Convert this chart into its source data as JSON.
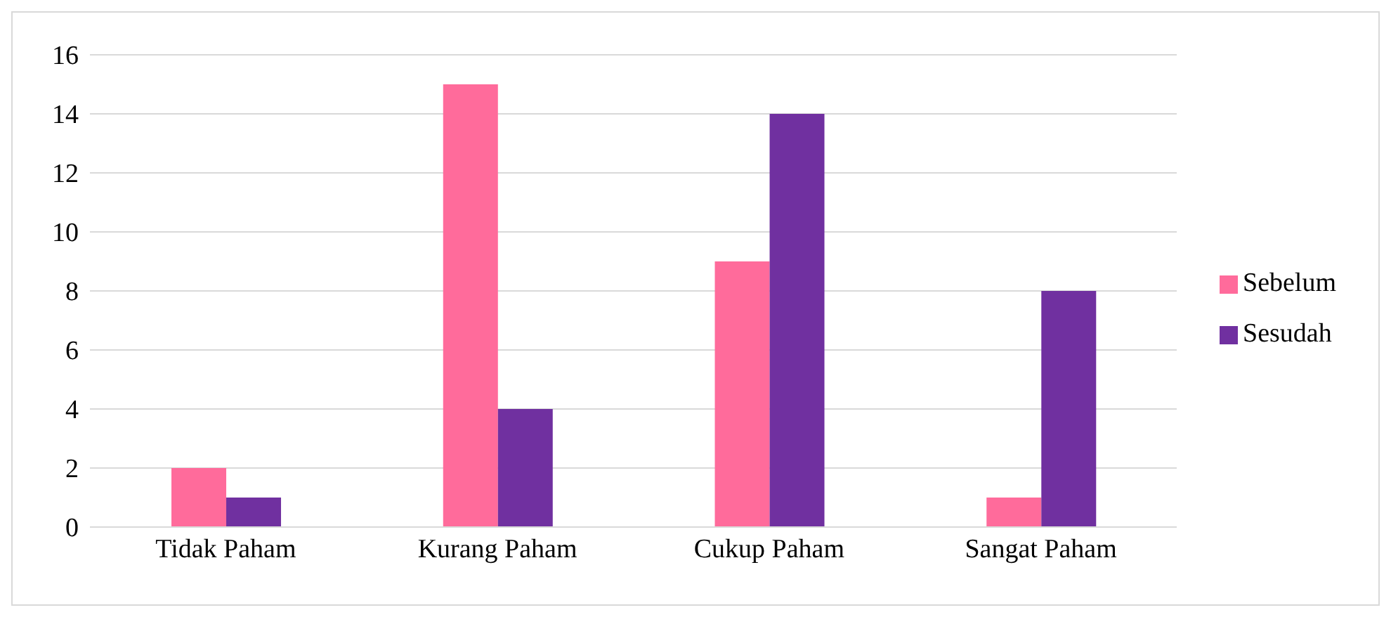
{
  "chart_data": {
    "type": "bar",
    "categories": [
      "Tidak Paham",
      "Kurang Paham",
      "Cukup Paham",
      "Sangat Paham"
    ],
    "series": [
      {
        "name": "Sebelum",
        "color": "#ff6b9b",
        "values": [
          2,
          15,
          9,
          1
        ]
      },
      {
        "name": "Sesudah",
        "color": "#7030a0",
        "values": [
          1,
          4,
          14,
          8
        ]
      }
    ],
    "ylim": [
      0,
      16
    ],
    "yticks": [
      0,
      2,
      4,
      6,
      8,
      10,
      12,
      14,
      16
    ],
    "grid": "y",
    "legend": "right"
  }
}
